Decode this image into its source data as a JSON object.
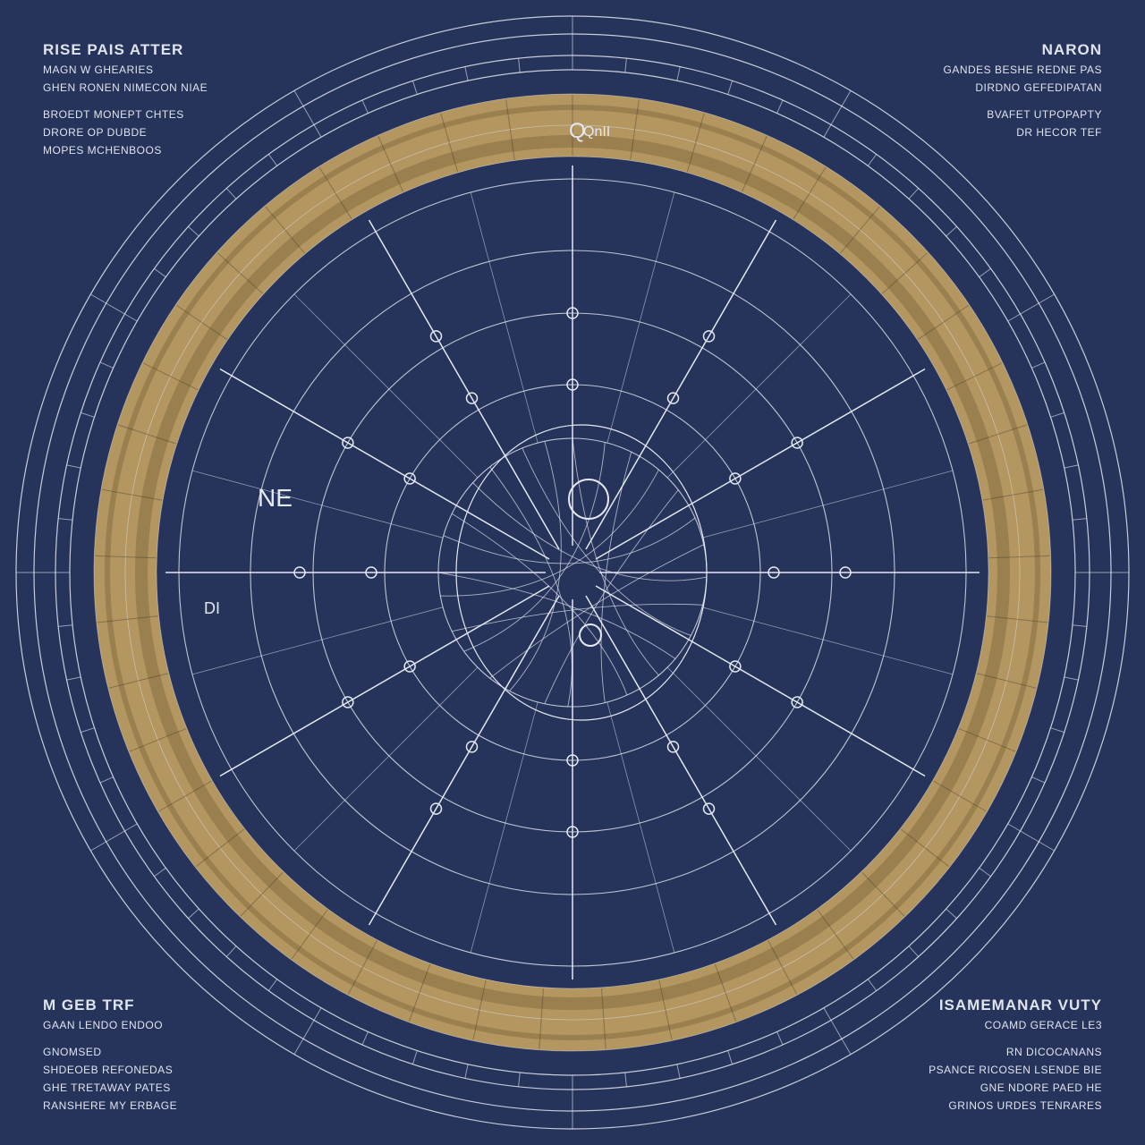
{
  "colors": {
    "background": "#26335a",
    "line": "#e4e8f2",
    "ring_gold": "#b39660",
    "ring_dark": "#8e7647"
  },
  "corners": {
    "top_left": [
      "RISE PAIS ATTER",
      "MAGN W GHEARIES",
      "GHEN RONEN NIMECON NIAE",
      "",
      "BROEDT MONEPT CHTES",
      "DRORE OP DUBDE",
      "MOPES MCHENBOOS"
    ],
    "top_right": [
      "NARON",
      "GANDES BESHE REDNE PAS",
      "DIRDNO GEFEDIPATAN",
      "",
      "BVAFET UTPOPAPTY",
      "DR HECOR TEF"
    ],
    "bottom_left": [
      "M GEB TRF",
      "GAAN LENDO ENDOO",
      "",
      "GNOMSED",
      "SHDEOEB REFONEDAS",
      "GHE TRETAWAY PATES",
      "RANSHERE MY ERBAGE"
    ],
    "bottom_right": [
      "ISAMEMANAR VUTY",
      "COAMD GERACE LE3",
      "",
      "RN DICOCANANS",
      "PSANCE RICOSEN LSENDE BIE",
      "GNE NDORE PAED HE",
      "GRINOS URDES TENRARES"
    ]
  },
  "diagram": {
    "center_label": "NE",
    "top_label": "Q",
    "ring_label": "QnII",
    "left_label": "DI"
  }
}
